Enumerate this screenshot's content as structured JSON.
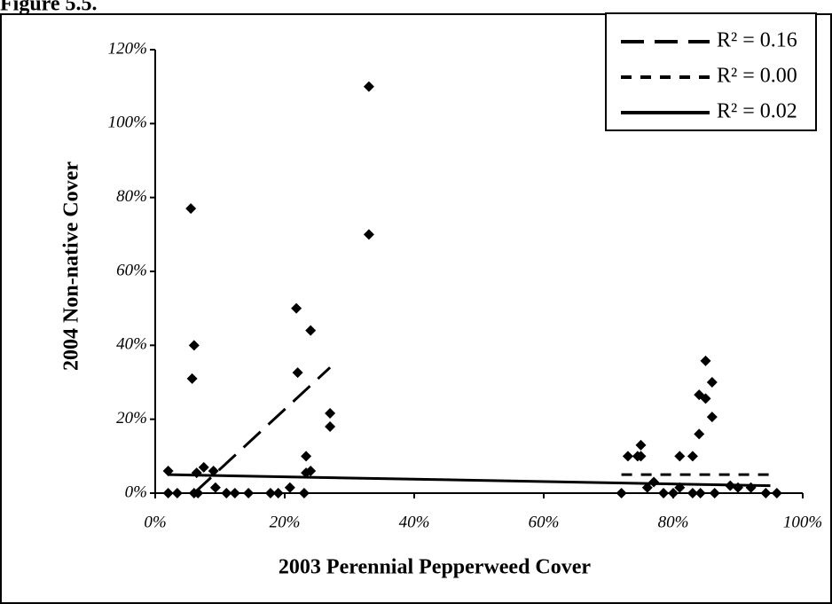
{
  "chart_data": {
    "type": "scatter",
    "title": "Figure 5.5.",
    "x_label": "2003 Perennial Pepperweed Cover",
    "y_label": "2004 Non-native Cover",
    "xlim": [
      0,
      100
    ],
    "ylim": [
      0,
      120
    ],
    "xticks": [
      {
        "value": 0,
        "label": "0%"
      },
      {
        "value": 20,
        "label": "20%"
      },
      {
        "value": 40,
        "label": "40%"
      },
      {
        "value": 60,
        "label": "60%"
      },
      {
        "value": 80,
        "label": "80%"
      },
      {
        "value": 100,
        "label": "100%"
      }
    ],
    "yticks": [
      {
        "value": 0,
        "label": "0%"
      },
      {
        "value": 20,
        "label": "20%"
      },
      {
        "value": 40,
        "label": "40%"
      },
      {
        "value": 60,
        "label": "60%"
      },
      {
        "value": 80,
        "label": "80%"
      },
      {
        "value": 100,
        "label": "100%"
      },
      {
        "value": 120,
        "label": "120%"
      }
    ],
    "color": "#000000",
    "x": [
      2,
      2,
      3.4,
      5.5,
      6,
      5.7,
      6.4,
      7.5,
      9,
      6,
      6.6,
      9.3,
      11,
      12.3,
      14.4,
      17.8,
      19,
      20.8,
      21.8,
      22,
      23,
      24,
      23.3,
      23.3,
      24,
      27,
      27,
      33,
      33,
      72,
      73,
      74.5,
      75,
      75,
      76,
      77,
      78.5,
      80,
      81,
      81,
      83,
      83,
      84,
      84,
      85,
      85,
      86,
      86,
      84.2,
      86.4,
      88.8,
      90,
      92,
      94.3,
      96
    ],
    "values": [
      0,
      6,
      0,
      77,
      40,
      31,
      5.5,
      7,
      6,
      0,
      0,
      1.5,
      0,
      0,
      0,
      0,
      0,
      1.5,
      50,
      32.6,
      0,
      44,
      10,
      5.5,
      6,
      21.6,
      18,
      110,
      70,
      0,
      10,
      10,
      13,
      10,
      1.5,
      3,
      0,
      0,
      10,
      1.5,
      0,
      10,
      16,
      26.6,
      25.6,
      35.8,
      30,
      20.6,
      0,
      0,
      2,
      1.5,
      1.5,
      0,
      0
    ],
    "trendlines": [
      {
        "name": "R² = 0.16",
        "style": "long-dash",
        "x": [
          6,
          27
        ],
        "y": [
          0,
          34
        ]
      },
      {
        "name": "R² = 0.00",
        "style": "short-dash",
        "x": [
          72,
          95
        ],
        "y": [
          5,
          5
        ]
      },
      {
        "name": "R² = 0.02",
        "style": "solid",
        "x": [
          2,
          95
        ],
        "y": [
          5,
          2
        ]
      }
    ]
  }
}
